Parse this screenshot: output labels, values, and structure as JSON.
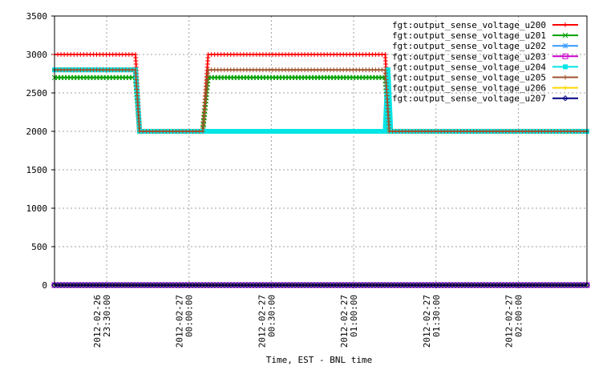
{
  "chart_data": {
    "type": "line",
    "title": "",
    "xlabel": "Time, EST - BNL time",
    "ylabel": "",
    "ylim": [
      0,
      3500
    ],
    "yticks": [
      0,
      500,
      1000,
      1500,
      2000,
      2500,
      3000,
      3500
    ],
    "xlim": [
      "2012-02-26 23:11:00",
      "2012-02-27 02:25:00"
    ],
    "xticks": [
      {
        "t": "2012-02-26 23:30:00",
        "line1": "2012-02-26",
        "line2": "23:30:00"
      },
      {
        "t": "2012-02-27 00:00:00",
        "line1": "2012-02-27",
        "line2": "00:00:00"
      },
      {
        "t": "2012-02-27 00:30:00",
        "line1": "2012-02-27",
        "line2": "00:30:00"
      },
      {
        "t": "2012-02-27 01:00:00",
        "line1": "2012-02-27",
        "line2": "01:00:00"
      },
      {
        "t": "2012-02-27 01:30:00",
        "line1": "2012-02-27",
        "line2": "01:30:00"
      },
      {
        "t": "2012-02-27 02:00:00",
        "line1": "2012-02-27",
        "line2": "02:00:00"
      }
    ],
    "grid": true,
    "legend_position": "top-right",
    "series": [
      {
        "name": "fgt:output_sense_voltage_u200",
        "color": "#ff0000",
        "marker": "plus",
        "points": [
          [
            "2012-02-26 23:11:00",
            3000
          ],
          [
            "2012-02-26 23:40:30",
            3000
          ],
          [
            "2012-02-26 23:42:00",
            2000
          ],
          [
            "2012-02-27 00:05:00",
            2000
          ],
          [
            "2012-02-27 00:07:00",
            3000
          ],
          [
            "2012-02-27 01:11:30",
            3000
          ],
          [
            "2012-02-27 01:13:00",
            2000
          ],
          [
            "2012-02-27 02:25:00",
            2000
          ]
        ]
      },
      {
        "name": "fgt:output_sense_voltage_u201",
        "color": "#00a000",
        "marker": "x",
        "points": [
          [
            "2012-02-26 23:11:00",
            2700
          ],
          [
            "2012-02-26 23:40:30",
            2700
          ],
          [
            "2012-02-26 23:42:00",
            2000
          ],
          [
            "2012-02-27 00:05:00",
            2000
          ],
          [
            "2012-02-27 00:07:00",
            2700
          ],
          [
            "2012-02-27 01:11:30",
            2700
          ],
          [
            "2012-02-27 01:13:00",
            2000
          ],
          [
            "2012-02-27 02:25:00",
            2000
          ]
        ]
      },
      {
        "name": "fgt:output_sense_voltage_u202",
        "color": "#3399ff",
        "marker": "star",
        "points": [
          [
            "2012-02-26 23:11:00",
            0
          ],
          [
            "2012-02-27 02:25:00",
            0
          ]
        ]
      },
      {
        "name": "fgt:output_sense_voltage_u203",
        "color": "#cc00cc",
        "marker": "square",
        "points": [
          [
            "2012-02-26 23:11:00",
            0
          ],
          [
            "2012-02-27 02:25:00",
            0
          ]
        ]
      },
      {
        "name": "fgt:output_sense_voltage_u204",
        "color": "#00e5e5",
        "marker": "filled-square",
        "points": [
          [
            "2012-02-26 23:11:00",
            2800
          ],
          [
            "2012-02-26 23:40:30",
            2800
          ],
          [
            "2012-02-26 23:42:00",
            2000
          ],
          [
            "2012-02-27 01:11:30",
            2000
          ],
          [
            "2012-02-27 01:12:30",
            2800
          ],
          [
            "2012-02-27 01:13:30",
            2000
          ],
          [
            "2012-02-27 02:25:00",
            2000
          ]
        ]
      },
      {
        "name": "fgt:output_sense_voltage_u205",
        "color": "#a0522d",
        "marker": "plus",
        "points": [
          [
            "2012-02-26 23:11:00",
            2800
          ],
          [
            "2012-02-26 23:40:30",
            2800
          ],
          [
            "2012-02-26 23:42:00",
            2000
          ],
          [
            "2012-02-27 00:05:00",
            2000
          ],
          [
            "2012-02-27 00:07:00",
            2800
          ],
          [
            "2012-02-27 01:11:30",
            2800
          ],
          [
            "2012-02-27 01:13:00",
            2000
          ],
          [
            "2012-02-27 02:25:00",
            2000
          ]
        ]
      },
      {
        "name": "fgt:output_sense_voltage_u206",
        "color": "#ffd700",
        "marker": "plus",
        "points": [
          [
            "2012-02-26 23:11:00",
            0
          ],
          [
            "2012-02-27 02:25:00",
            0
          ]
        ]
      },
      {
        "name": "fgt:output_sense_voltage_u207",
        "color": "#000080",
        "marker": "diamond",
        "points": [
          [
            "2012-02-26 23:11:00",
            0
          ],
          [
            "2012-02-27 02:25:00",
            0
          ]
        ]
      }
    ]
  }
}
